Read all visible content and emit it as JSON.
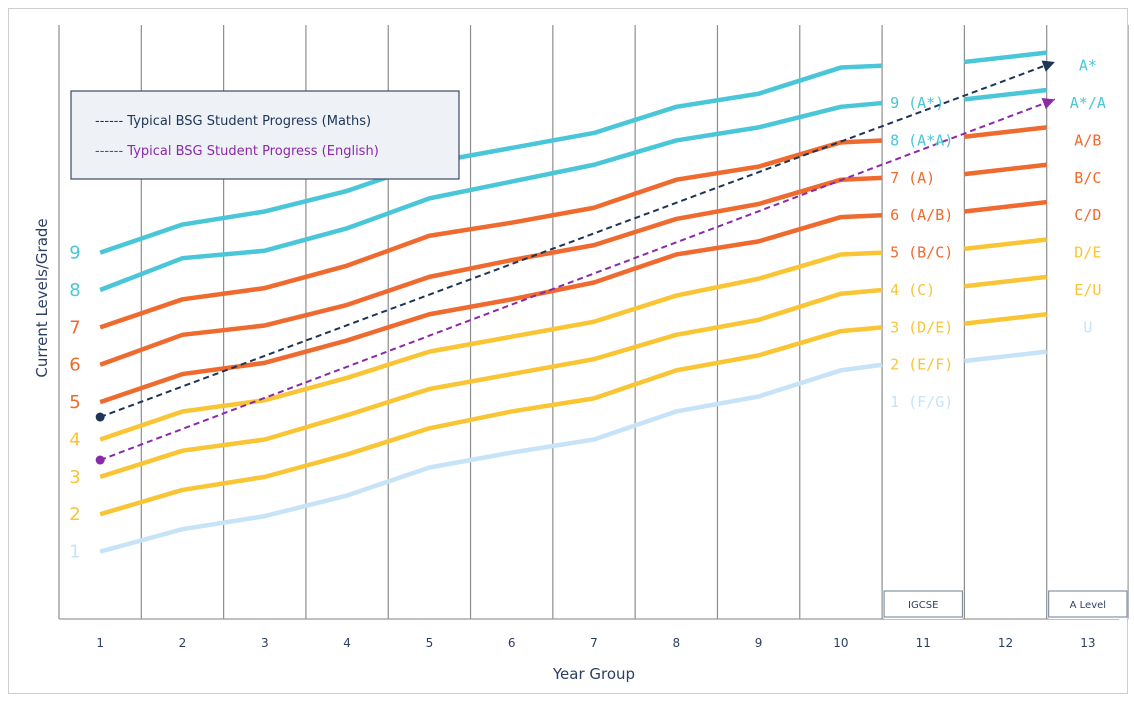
{
  "colors": {
    "teal": "#49c6d8",
    "orange": "#ef6a2e",
    "yellow": "#f9c534",
    "lightblue": "#c7e3f7",
    "maths": "#1d3557",
    "english": "#8a2aa8",
    "grid": "#8d8d8d",
    "text": "#2b3f63"
  },
  "chart_data": {
    "type": "line",
    "xlabel": "Year Group",
    "ylabel": "Current Levels/Grade",
    "x": [
      1,
      2,
      3,
      4,
      5,
      6,
      7,
      8,
      9,
      10,
      11,
      12,
      13
    ],
    "xlim": [
      0.5,
      13.5
    ],
    "ylim": [
      0,
      14.5
    ],
    "grid": true,
    "legend_position": "top-left",
    "left_labels": [
      {
        "text": "9",
        "y": 9.0,
        "color": "teal"
      },
      {
        "text": "8",
        "y": 8.0,
        "color": "teal"
      },
      {
        "text": "7",
        "y": 7.0,
        "color": "orange"
      },
      {
        "text": "6",
        "y": 6.0,
        "color": "orange"
      },
      {
        "text": "5",
        "y": 5.0,
        "color": "orange"
      },
      {
        "text": "4",
        "y": 4.0,
        "color": "yellow"
      },
      {
        "text": "3",
        "y": 3.0,
        "color": "yellow"
      },
      {
        "text": "2",
        "y": 2.0,
        "color": "yellow"
      },
      {
        "text": "1",
        "y": 1.0,
        "color": "lightblue"
      }
    ],
    "igcse_labels": [
      {
        "text": "9 (A*)",
        "y": 13.0,
        "color": "teal"
      },
      {
        "text": "8 (A*A)",
        "y": 12.0,
        "color": "teal"
      },
      {
        "text": "7 (A)",
        "y": 11.0,
        "color": "orange"
      },
      {
        "text": "6 (A/B)",
        "y": 10.0,
        "color": "orange"
      },
      {
        "text": "5 (B/C)",
        "y": 9.0,
        "color": "orange"
      },
      {
        "text": "4 (C)",
        "y": 8.0,
        "color": "yellow"
      },
      {
        "text": "3 (D/E)",
        "y": 7.0,
        "color": "yellow"
      },
      {
        "text": "2 (E/F)",
        "y": 6.0,
        "color": "yellow"
      },
      {
        "text": "1 (F/G)",
        "y": 5.0,
        "color": "lightblue"
      }
    ],
    "alevel_labels": [
      {
        "text": "A*",
        "y": 14.0,
        "color": "teal"
      },
      {
        "text": "A*/A",
        "y": 13.0,
        "color": "teal"
      },
      {
        "text": "A/B",
        "y": 12.0,
        "color": "orange"
      },
      {
        "text": "B/C",
        "y": 11.0,
        "color": "orange"
      },
      {
        "text": "C/D",
        "y": 10.0,
        "color": "orange"
      },
      {
        "text": "D/E",
        "y": 9.0,
        "color": "yellow"
      },
      {
        "text": "E/U",
        "y": 8.0,
        "color": "yellow"
      },
      {
        "text": "U",
        "y": 7.0,
        "color": "lightblue"
      }
    ],
    "bands": [
      {
        "color": "teal",
        "x": [
          1,
          2,
          3,
          4,
          5,
          6,
          7,
          8,
          9,
          10,
          11,
          12,
          13
        ],
        "values": [
          9.0,
          9.75,
          10.1,
          10.65,
          11.4,
          11.8,
          12.2,
          12.9,
          13.25,
          13.95,
          14.0,
          14.1,
          14.35
        ]
      },
      {
        "color": "teal",
        "x": [
          1,
          2,
          3,
          4,
          5,
          6,
          7,
          8,
          9,
          10,
          11,
          12,
          13
        ],
        "values": [
          8.0,
          8.85,
          9.05,
          9.65,
          10.45,
          10.9,
          11.35,
          12.0,
          12.35,
          12.9,
          13.0,
          13.1,
          13.35
        ]
      },
      {
        "color": "orange",
        "x": [
          1,
          2,
          3,
          4,
          5,
          6,
          7,
          8,
          9,
          10,
          11,
          12,
          13
        ],
        "values": [
          7.0,
          7.75,
          8.05,
          8.65,
          9.45,
          9.8,
          10.2,
          10.95,
          11.3,
          11.95,
          12.0,
          12.1,
          12.35
        ]
      },
      {
        "color": "orange",
        "x": [
          1,
          2,
          3,
          4,
          5,
          6,
          7,
          8,
          9,
          10,
          11,
          12,
          13
        ],
        "values": [
          6.0,
          6.8,
          7.05,
          7.6,
          8.35,
          8.8,
          9.2,
          9.9,
          10.3,
          10.95,
          11.0,
          11.1,
          11.35
        ]
      },
      {
        "color": "orange",
        "x": [
          1,
          2,
          3,
          4,
          5,
          6,
          7,
          8,
          9,
          10,
          11,
          12,
          13
        ],
        "values": [
          5.0,
          5.75,
          6.05,
          6.65,
          7.35,
          7.75,
          8.2,
          8.95,
          9.3,
          9.95,
          10.0,
          10.1,
          10.35
        ]
      },
      {
        "color": "yellow",
        "x": [
          1,
          2,
          3,
          4,
          5,
          6,
          7,
          8,
          9,
          10,
          11,
          12,
          13
        ],
        "values": [
          4.0,
          4.75,
          5.05,
          5.65,
          6.35,
          6.75,
          7.15,
          7.85,
          8.3,
          8.95,
          9.0,
          9.1,
          9.35
        ]
      },
      {
        "color": "yellow",
        "x": [
          1,
          2,
          3,
          4,
          5,
          6,
          7,
          8,
          9,
          10,
          11,
          12,
          13
        ],
        "values": [
          3.0,
          3.7,
          4.0,
          4.65,
          5.35,
          5.75,
          6.15,
          6.8,
          7.2,
          7.9,
          8.0,
          8.1,
          8.35
        ]
      },
      {
        "color": "yellow",
        "x": [
          1,
          2,
          3,
          4,
          5,
          6,
          7,
          8,
          9,
          10,
          11,
          12,
          13
        ],
        "values": [
          2.0,
          2.65,
          3.0,
          3.6,
          4.3,
          4.75,
          5.1,
          5.85,
          6.25,
          6.9,
          7.0,
          7.1,
          7.35
        ]
      },
      {
        "color": "lightblue",
        "x": [
          1,
          2,
          3,
          4,
          5,
          6,
          7,
          8,
          9,
          10,
          11,
          12,
          13
        ],
        "values": [
          1.0,
          1.6,
          1.95,
          2.5,
          3.25,
          3.65,
          4.0,
          4.75,
          5.15,
          5.85,
          6.0,
          6.1,
          6.35
        ]
      }
    ],
    "series": [
      {
        "name": "Typical BSG Student Progress (Maths)",
        "color": "maths",
        "x": [
          1,
          12.6
        ],
        "values": [
          4.6,
          14.1
        ]
      },
      {
        "name": "Typical BSG Student Progress (English)",
        "color": "english",
        "x": [
          1,
          12.6
        ],
        "values": [
          3.45,
          13.1
        ]
      }
    ],
    "legend": [
      {
        "text": "------ Typical BSG Student Progress (Maths)",
        "color": "maths"
      },
      {
        "text": "------ Typical BSG Student Progress (English)",
        "color": "english"
      }
    ],
    "annotations": [
      {
        "text": "IGCSE",
        "column": 11
      },
      {
        "text": "A Level",
        "column": 13
      }
    ]
  }
}
